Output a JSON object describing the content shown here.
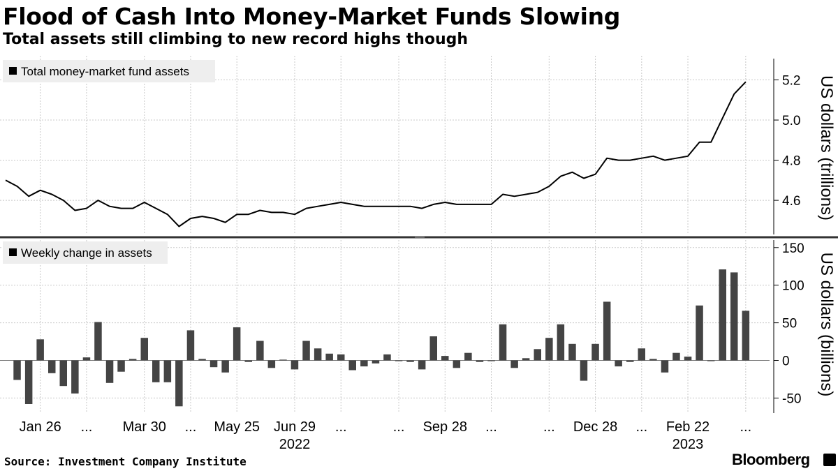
{
  "title": "Flood of Cash Into Money-Market Funds Slowing",
  "subtitle": "Total assets still climbing to new record highs though",
  "source": "Source: Investment Company Institute",
  "brand": "Bloomberg",
  "colors": {
    "line": "#000000",
    "bar": "#444444",
    "grid": "#c8c8c8",
    "legend_bg": "#eeeeee",
    "divider": "#333333"
  },
  "x_axis": {
    "ticks": [
      {
        "label": "Jan 26",
        "week": 3
      },
      {
        "label": "...",
        "week": 7
      },
      {
        "label": "Mar 30",
        "week": 12
      },
      {
        "label": "...",
        "week": 16
      },
      {
        "label": "May 25",
        "week": 20
      },
      {
        "label": "Jun 29",
        "week": 25
      },
      {
        "label": "...",
        "week": 29
      },
      {
        "label": "...",
        "week": 34
      },
      {
        "label": "Sep 28",
        "week": 38
      },
      {
        "label": "...",
        "week": 42
      },
      {
        "label": "...",
        "week": 47
      },
      {
        "label": "Dec 28",
        "week": 51
      },
      {
        "label": "...",
        "week": 55
      },
      {
        "label": "Feb 22",
        "week": 59
      },
      {
        "label": "...",
        "week": 64
      }
    ],
    "years": [
      {
        "label": "2022",
        "week": 25
      },
      {
        "label": "2023",
        "week": 59
      }
    ]
  },
  "chart_data": [
    {
      "type": "line",
      "legend": "Total money-market fund assets",
      "ylabel": "US dollars (trillions)",
      "ylim": [
        4.43,
        5.32
      ],
      "yticks": [
        4.6,
        4.8,
        5.0,
        5.2
      ],
      "ytick_labels": [
        "4.6",
        "4.8",
        "5.0",
        "5.2"
      ],
      "legend_position": "top-left",
      "grid": true,
      "values": [
        4.7,
        4.67,
        4.62,
        4.65,
        4.63,
        4.6,
        4.55,
        4.56,
        4.6,
        4.57,
        4.56,
        4.56,
        4.59,
        4.56,
        4.53,
        4.47,
        4.51,
        4.52,
        4.51,
        4.49,
        4.53,
        4.53,
        4.55,
        4.54,
        4.54,
        4.53,
        4.56,
        4.57,
        4.58,
        4.59,
        4.58,
        4.57,
        4.57,
        4.57,
        4.57,
        4.57,
        4.56,
        4.58,
        4.59,
        4.58,
        4.58,
        4.58,
        4.58,
        4.63,
        4.62,
        4.63,
        4.64,
        4.67,
        4.72,
        4.74,
        4.71,
        4.73,
        4.81,
        4.8,
        4.8,
        4.81,
        4.82,
        4.8,
        4.81,
        4.82,
        4.89,
        4.89,
        5.01,
        5.13,
        5.19
      ]
    },
    {
      "type": "bar",
      "legend": "Weekly change in assets",
      "ylabel": "US dollars (billions)",
      "ylim": [
        -70,
        160
      ],
      "yticks": [
        -50,
        0,
        50,
        100,
        150
      ],
      "ytick_labels": [
        "-50",
        "0",
        "50",
        "100",
        "150"
      ],
      "legend_position": "top-left",
      "grid": true,
      "values": [
        -26,
        -58,
        28,
        -17,
        -34,
        -44,
        4,
        51,
        -30,
        -15,
        2,
        30,
        -29,
        -29,
        -61,
        40,
        2,
        -9,
        -16,
        44,
        -2,
        26,
        -10,
        1,
        -12,
        26,
        16,
        9,
        8,
        -13,
        -8,
        -4,
        8,
        -1,
        -2,
        -12,
        32,
        6,
        -10,
        10,
        -2,
        -1,
        48,
        -10,
        3,
        15,
        30,
        48,
        22,
        -27,
        22,
        78,
        -8,
        -2,
        16,
        2,
        -16,
        10,
        5,
        73,
        -1,
        121,
        117,
        66
      ]
    }
  ]
}
